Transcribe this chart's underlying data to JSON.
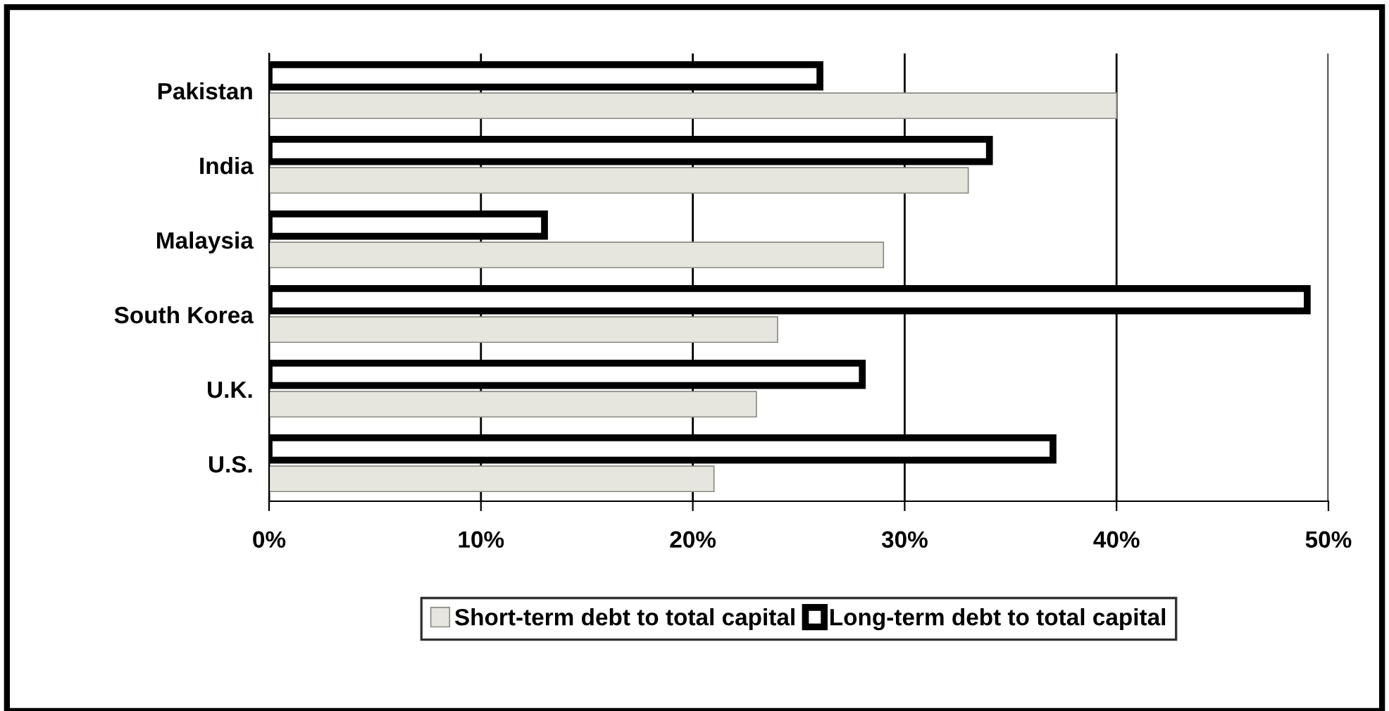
{
  "chart_data": {
    "type": "bar",
    "orientation": "horizontal",
    "categories": [
      "Pakistan",
      "India",
      "Malaysia",
      "South Korea",
      "U.K.",
      "U.S."
    ],
    "series": [
      {
        "name": "Short-term debt to total capital",
        "color": "#e6e6de",
        "values": [
          40,
          33,
          29,
          24,
          23,
          21
        ]
      },
      {
        "name": "Long-term debt to total capital",
        "color": "#ffffff",
        "values": [
          26,
          34,
          13,
          49,
          28,
          37
        ]
      }
    ],
    "xlim": [
      0,
      50
    ],
    "xticks": [
      {
        "value": 0,
        "label": "0%"
      },
      {
        "value": 10,
        "label": "10%"
      },
      {
        "value": 20,
        "label": "20%"
      },
      {
        "value": 30,
        "label": "30%"
      },
      {
        "value": 40,
        "label": "40%"
      },
      {
        "value": 50,
        "label": "50%"
      }
    ],
    "grid": "x",
    "legend": "bottom"
  }
}
